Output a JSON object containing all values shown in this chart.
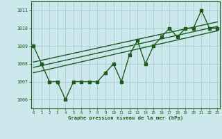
{
  "x": [
    0,
    1,
    2,
    3,
    4,
    5,
    6,
    7,
    8,
    9,
    10,
    11,
    12,
    13,
    14,
    15,
    16,
    17,
    18,
    19,
    20,
    21,
    22,
    23
  ],
  "y_main": [
    1009,
    1008,
    1007,
    1007,
    1006,
    1007,
    1007,
    1007,
    1007,
    1007.5,
    1008,
    1007,
    1008.5,
    1009.3,
    1008,
    1009,
    1009.5,
    1010,
    1009.5,
    1010,
    1010,
    1011,
    1010,
    1010
  ],
  "ylim": [
    1005.5,
    1011.5
  ],
  "xlim": [
    -0.3,
    23.3
  ],
  "yticks": [
    1006,
    1007,
    1008,
    1009,
    1010,
    1011
  ],
  "xticks": [
    0,
    1,
    2,
    3,
    4,
    5,
    6,
    7,
    8,
    9,
    10,
    11,
    12,
    13,
    14,
    15,
    16,
    17,
    18,
    19,
    20,
    21,
    22,
    23
  ],
  "xlabel": "Graphe pression niveau de la mer (hPa)",
  "bg_color": "#cce8ec",
  "line_color": "#1e5c1e",
  "grid_color": "#a8cdd0",
  "marker_size": 2.5,
  "line_width": 1.0,
  "trend_lower": [
    1007.5,
    1009.85
  ],
  "trend_mid": [
    1007.8,
    1010.1
  ],
  "trend_upper": [
    1008.1,
    1010.35
  ]
}
